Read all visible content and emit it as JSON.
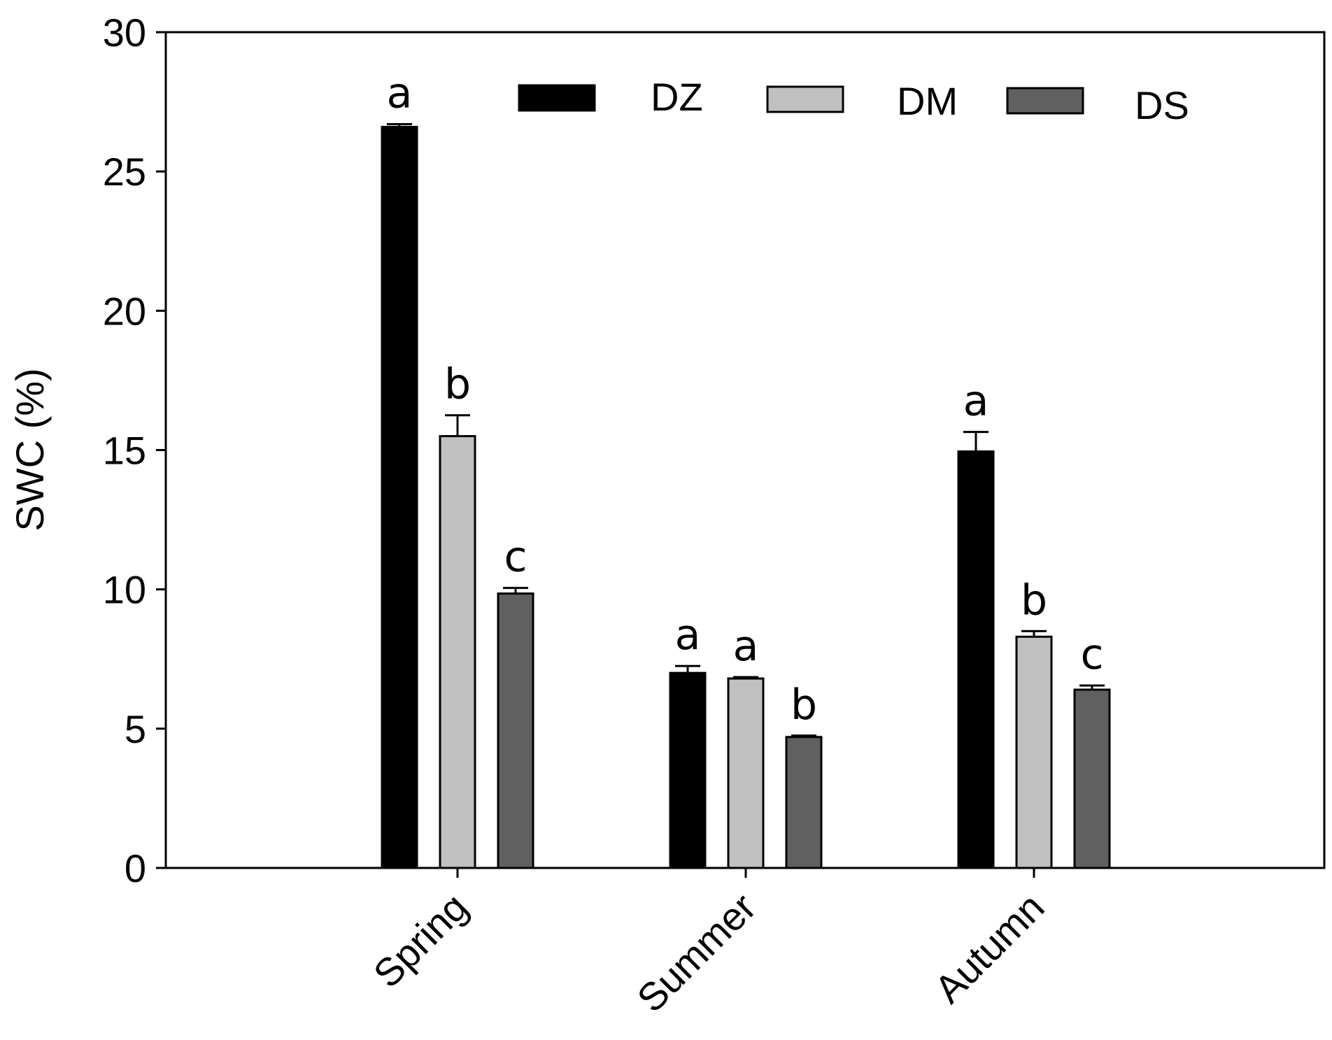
{
  "chart_data": {
    "type": "bar",
    "title": "",
    "xlabel": "",
    "ylabel": "SWC (%)",
    "ylim": [
      0,
      30
    ],
    "yticks": [
      "0",
      "5",
      "10",
      "15",
      "20",
      "25",
      "30"
    ],
    "categories": [
      "Spring",
      "Summer",
      "Autumn"
    ],
    "series": [
      {
        "name": "DZ",
        "color": "#000000",
        "values": [
          26.6,
          7.0,
          14.95
        ],
        "errors": [
          0.1,
          0.25,
          0.7
        ],
        "letters": [
          "a",
          "a",
          "a"
        ]
      },
      {
        "name": "DM",
        "color": "#c0c0c0",
        "values": [
          15.5,
          6.8,
          8.3
        ],
        "errors": [
          0.75,
          0.05,
          0.2
        ],
        "letters": [
          "b",
          "a",
          "b"
        ]
      },
      {
        "name": "DS",
        "color": "#606060",
        "values": [
          9.85,
          4.7,
          6.4
        ],
        "errors": [
          0.2,
          0.05,
          0.15
        ],
        "letters": [
          "c",
          "b",
          "c"
        ]
      }
    ],
    "legend_position": "top-right",
    "grid": false
  }
}
